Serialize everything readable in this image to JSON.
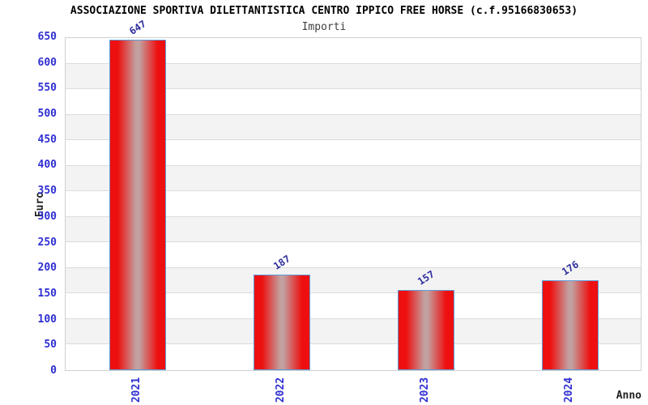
{
  "chart_data": {
    "type": "bar",
    "title": "ASSOCIAZIONE SPORTIVA DILETTANTISTICA CENTRO IPPICO FREE HORSE (c.f.95166830653)",
    "subtitle": "Importi",
    "xlabel": "Anno",
    "ylabel": "Euro",
    "categories": [
      "2021",
      "2022",
      "2023",
      "2024"
    ],
    "values": [
      647,
      187,
      157,
      176
    ],
    "value_labels": [
      "647",
      "187",
      "157",
      "176"
    ],
    "ylim": [
      0,
      650
    ],
    "yticks": [
      0,
      50,
      100,
      150,
      200,
      250,
      300,
      350,
      400,
      450,
      500,
      550,
      600,
      650
    ],
    "legend": "none",
    "grid": "horizontal-bands",
    "colors": {
      "background": "#ffffff",
      "bar_red": "#ee1010",
      "bar_highlight": "#c2a0a0",
      "bar_border": "#5f9dd8",
      "tick_label": "#2e2ed2",
      "value_label": "#2d2d9e",
      "band_white": "#ffffff",
      "band_gray": "#f3f3f3",
      "gridline": "#dcdcdc",
      "plot_border": "#d0d0d0",
      "title": "#000000",
      "subtitle": "#3f3f3f",
      "axis_label": "#222222"
    }
  }
}
